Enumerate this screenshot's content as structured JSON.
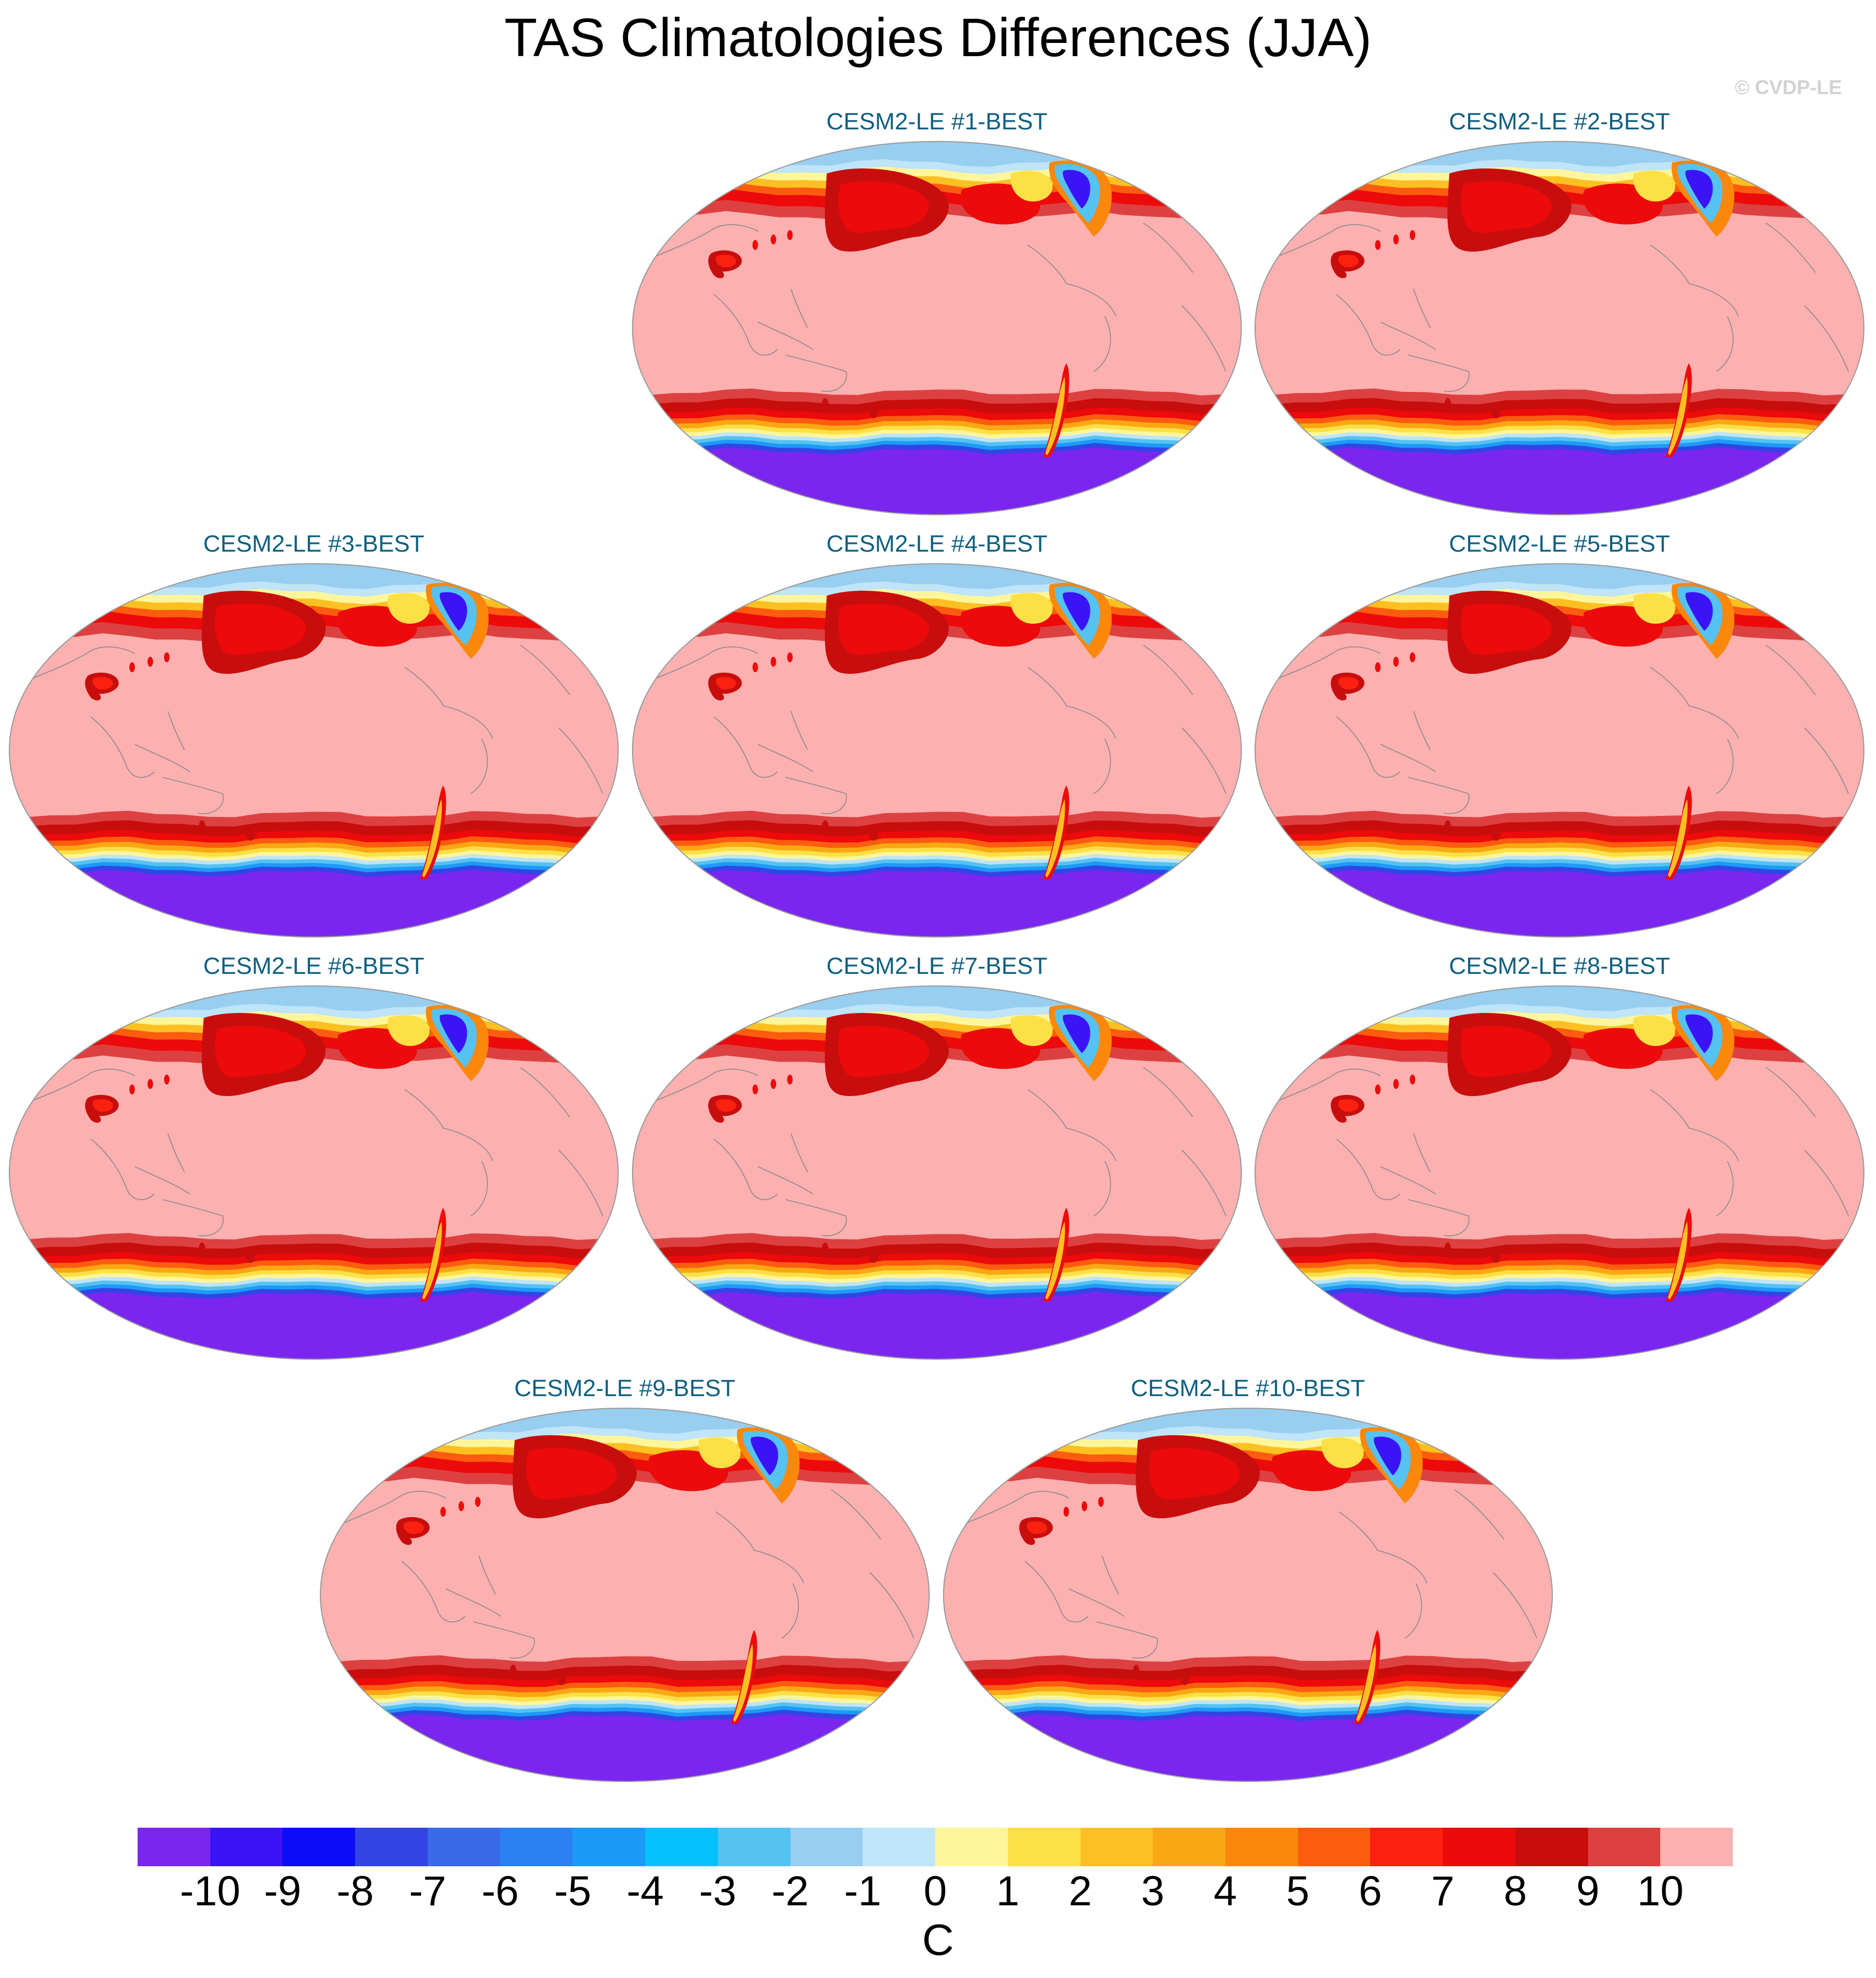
{
  "figure": {
    "title": "TAS Climatologies Differences (JJA)",
    "copyright": "© CVDP-LE"
  },
  "chart_data": {
    "type": "heatmap",
    "variable": "TAS",
    "season": "JJA",
    "panels": [
      {
        "title": "CESM2-LE #1-BEST"
      },
      {
        "title": "CESM2-LE #2-BEST"
      },
      {
        "title": "CESM2-LE #3-BEST"
      },
      {
        "title": "CESM2-LE #4-BEST"
      },
      {
        "title": "CESM2-LE #5-BEST"
      },
      {
        "title": "CESM2-LE #6-BEST"
      },
      {
        "title": "CESM2-LE #7-BEST"
      },
      {
        "title": "CESM2-LE #8-BEST"
      },
      {
        "title": "CESM2-LE #9-BEST"
      },
      {
        "title": "CESM2-LE #10-BEST"
      }
    ],
    "colorbar": {
      "units": "C",
      "levels": [
        -10,
        -9,
        -8,
        -7,
        -6,
        -5,
        -4,
        -3,
        -2,
        -1,
        0,
        1,
        2,
        3,
        4,
        5,
        6,
        7,
        8,
        9,
        10
      ],
      "tick_labels": [
        "-10",
        "-9",
        "-8",
        "-7",
        "-6",
        "-5",
        "-4",
        "-3",
        "-2",
        "-1",
        "0",
        "1",
        "2",
        "3",
        "4",
        "5",
        "6",
        "7",
        "8",
        "9",
        "10"
      ],
      "colors": [
        "#7b26f0",
        "#3b14f5",
        "#0c0cf8",
        "#3344e4",
        "#3a6ae8",
        "#2a82f2",
        "#1c9af8",
        "#04c0fb",
        "#55c2f2",
        "#98cef0",
        "#c0e4f8",
        "#fff69c",
        "#fce046",
        "#fcc023",
        "#f9a814",
        "#fb880b",
        "#fb5c0f",
        "#fb2010",
        "#ec0a0a",
        "#c80d0d",
        "#dd4040",
        "#fcb0b0"
      ]
    }
  }
}
